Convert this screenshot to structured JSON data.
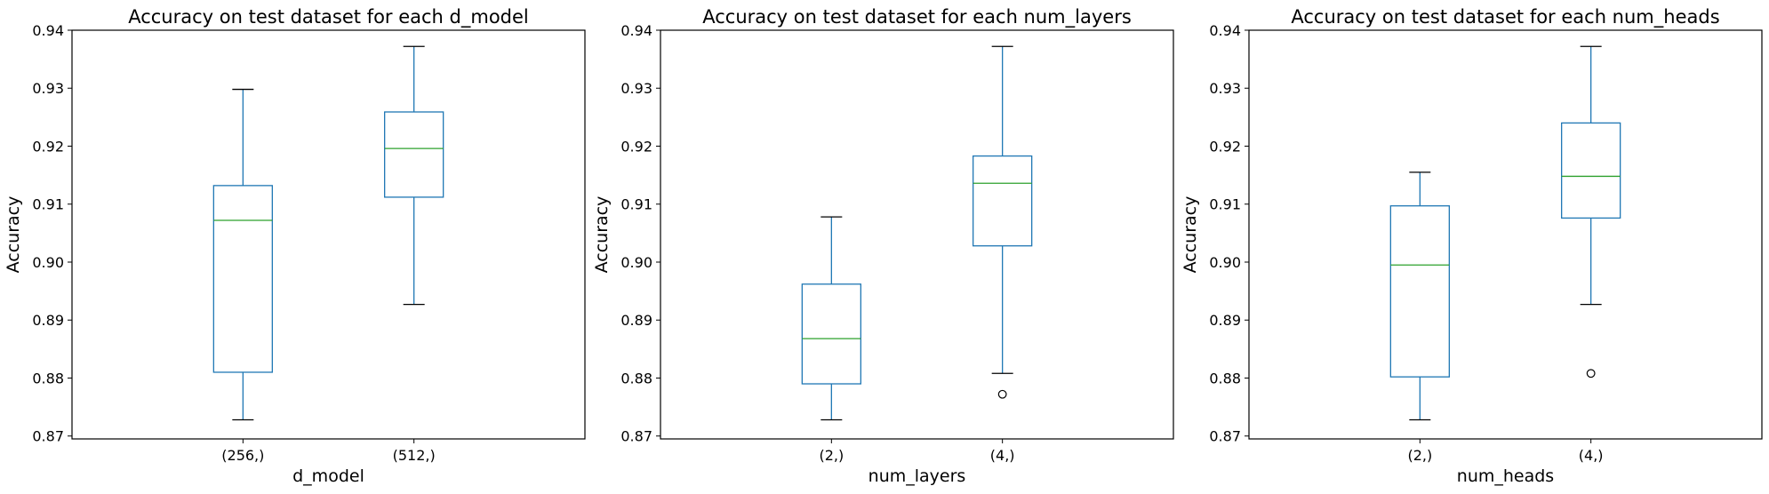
{
  "chart_data": [
    {
      "type": "box",
      "title": "Accuracy on test dataset for each d_model",
      "xlabel": "d_model",
      "ylabel": "Accuracy",
      "ylim": [
        0.8695,
        0.94
      ],
      "yticks": [
        "0.87",
        "0.88",
        "0.89",
        "0.90",
        "0.91",
        "0.92",
        "0.93",
        "0.94"
      ],
      "categories": [
        "(256,)",
        "(512,)"
      ],
      "boxes": [
        {
          "whislo": 0.8728,
          "q1": 0.881,
          "med": 0.9072,
          "q3": 0.9132,
          "whishi": 0.9298,
          "fliers": []
        },
        {
          "whislo": 0.8927,
          "q1": 0.9112,
          "med": 0.9196,
          "q3": 0.9259,
          "whishi": 0.9372,
          "fliers": []
        }
      ]
    },
    {
      "type": "box",
      "title": "Accuracy on test dataset for each num_layers",
      "xlabel": "num_layers",
      "ylabel": "Accuracy",
      "ylim": [
        0.8695,
        0.94
      ],
      "yticks": [
        "0.87",
        "0.88",
        "0.89",
        "0.90",
        "0.91",
        "0.92",
        "0.93",
        "0.94"
      ],
      "categories": [
        "(2,)",
        "(4,)"
      ],
      "boxes": [
        {
          "whislo": 0.8728,
          "q1": 0.879,
          "med": 0.8868,
          "q3": 0.8962,
          "whishi": 0.9078,
          "fliers": []
        },
        {
          "whislo": 0.8808,
          "q1": 0.9028,
          "med": 0.9136,
          "q3": 0.9183,
          "whishi": 0.9372,
          "fliers": [
            0.8772
          ]
        }
      ]
    },
    {
      "type": "box",
      "title": "Accuracy on test dataset for each num_heads",
      "xlabel": "num_heads",
      "ylabel": "Accuracy",
      "ylim": [
        0.8695,
        0.94
      ],
      "yticks": [
        "0.87",
        "0.88",
        "0.89",
        "0.90",
        "0.91",
        "0.92",
        "0.93",
        "0.94"
      ],
      "categories": [
        "(2,)",
        "(4,)"
      ],
      "boxes": [
        {
          "whislo": 0.8728,
          "q1": 0.8802,
          "med": 0.8995,
          "q3": 0.9097,
          "whishi": 0.9155,
          "fliers": []
        },
        {
          "whislo": 0.8927,
          "q1": 0.9076,
          "med": 0.9148,
          "q3": 0.924,
          "whishi": 0.9372,
          "fliers": [
            0.8808
          ]
        }
      ]
    }
  ],
  "colors": {
    "box": "#1f77b4",
    "median": "#2ca02c",
    "whisker_cap": "#000000",
    "axes": "#000000"
  }
}
